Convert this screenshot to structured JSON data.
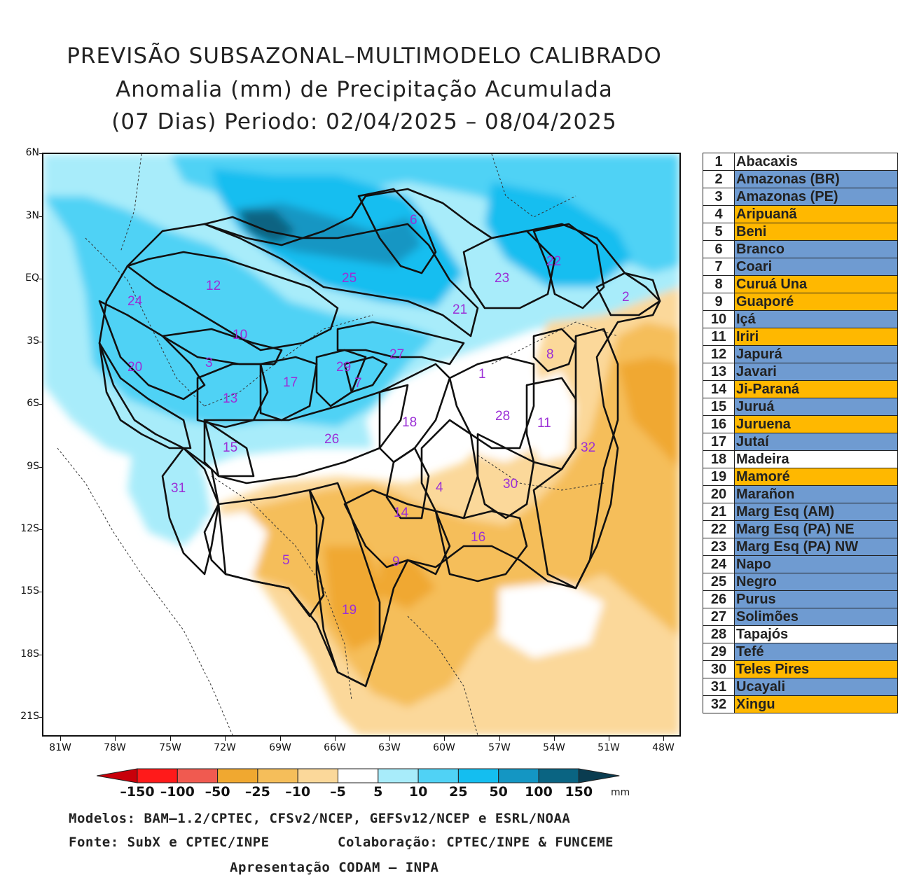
{
  "title": {
    "line1": "PREVISÃO SUBSAZONAL–MULTIMODELO CALIBRADO",
    "line2": "Anomalia (mm) de Precipitação Acumulada",
    "line3": "(07 Dias) Periodo: 02/04/2025 – 08/04/2025"
  },
  "axes": {
    "lat_labels": [
      "6N",
      "3N",
      "EQ",
      "3S",
      "6S",
      "9S",
      "12S",
      "15S",
      "18S",
      "21S"
    ],
    "lon_labels": [
      "81W",
      "78W",
      "75W",
      "72W",
      "69W",
      "66W",
      "63W",
      "60W",
      "57W",
      "54W",
      "51W",
      "48W"
    ]
  },
  "basin_labels": [
    "1",
    "2",
    "3",
    "4",
    "5",
    "6",
    "7",
    "8",
    "9",
    "10",
    "11",
    "12",
    "13",
    "14",
    "15",
    "16",
    "17",
    "18",
    "19",
    "20",
    "21",
    "22",
    "23",
    "24",
    "25",
    "26",
    "27",
    "28",
    "29",
    "30",
    "31",
    "32"
  ],
  "legend": [
    {
      "num": "1",
      "name": "Abacaxis",
      "color": "#ffffff"
    },
    {
      "num": "2",
      "name": "Amazonas (BR)",
      "color": "#6f9bd1"
    },
    {
      "num": "3",
      "name": "Amazonas (PE)",
      "color": "#6f9bd1"
    },
    {
      "num": "4",
      "name": "Aripuanã",
      "color": "#ffb800"
    },
    {
      "num": "5",
      "name": "Beni",
      "color": "#ffb800"
    },
    {
      "num": "6",
      "name": "Branco",
      "color": "#6f9bd1"
    },
    {
      "num": "7",
      "name": "Coari",
      "color": "#6f9bd1"
    },
    {
      "num": "8",
      "name": "Curuá Una",
      "color": "#ffb800"
    },
    {
      "num": "9",
      "name": "Guaporé",
      "color": "#ffb800"
    },
    {
      "num": "10",
      "name": "Içá",
      "color": "#6f9bd1"
    },
    {
      "num": "11",
      "name": "Iriri",
      "color": "#ffb800"
    },
    {
      "num": "12",
      "name": "Japurá",
      "color": "#6f9bd1"
    },
    {
      "num": "13",
      "name": "Javari",
      "color": "#6f9bd1"
    },
    {
      "num": "14",
      "name": "Ji-Paraná",
      "color": "#ffb800"
    },
    {
      "num": "15",
      "name": "Juruá",
      "color": "#6f9bd1"
    },
    {
      "num": "16",
      "name": "Juruena",
      "color": "#ffb800"
    },
    {
      "num": "17",
      "name": "Jutaí",
      "color": "#6f9bd1"
    },
    {
      "num": "18",
      "name": "Madeira",
      "color": "#ffffff"
    },
    {
      "num": "19",
      "name": "Mamoré",
      "color": "#ffb800"
    },
    {
      "num": "20",
      "name": "Marañon",
      "color": "#6f9bd1"
    },
    {
      "num": "21",
      "name": "Marg Esq (AM)",
      "color": "#6f9bd1"
    },
    {
      "num": "22",
      "name": "Marg Esq (PA) NE",
      "color": "#6f9bd1"
    },
    {
      "num": "23",
      "name": "Marg Esq (PA) NW",
      "color": "#6f9bd1"
    },
    {
      "num": "24",
      "name": "Napo",
      "color": "#6f9bd1"
    },
    {
      "num": "25",
      "name": "Negro",
      "color": "#6f9bd1"
    },
    {
      "num": "26",
      "name": "Purus",
      "color": "#6f9bd1"
    },
    {
      "num": "27",
      "name": "Solimões",
      "color": "#6f9bd1"
    },
    {
      "num": "28",
      "name": "Tapajós",
      "color": "#ffffff"
    },
    {
      "num": "29",
      "name": "Tefé",
      "color": "#6f9bd1"
    },
    {
      "num": "30",
      "name": "Teles Pires",
      "color": "#ffb800"
    },
    {
      "num": "31",
      "name": "Ucayali",
      "color": "#6f9bd1"
    },
    {
      "num": "32",
      "name": "Xingu",
      "color": "#ffb800"
    }
  ],
  "colorbar": {
    "ticks": [
      "–150",
      "–100",
      "–50",
      "–25",
      "–10",
      "–5",
      "5",
      "10",
      "25",
      "50",
      "100",
      "150"
    ],
    "unit": "mm",
    "colors": [
      "#c8000a",
      "#ff1a1a",
      "#f05a50",
      "#f0a830",
      "#f5be5a",
      "#fbd89a",
      "#ffffff",
      "#a8ecfa",
      "#50d2f5",
      "#14bef0",
      "#1496c3",
      "#0a6482",
      "#0a3c50"
    ]
  },
  "credits": {
    "models": "Modelos: BAM–1.2/CPTEC, CFSv2/NCEP, GEFSv12/NCEP e ESRL/NOAA",
    "source": "Fonte: SubX e CPTEC/INPE",
    "collab": "Colaboração: CPTEC/INPE & FUNCEME",
    "presentation": "Apresentação CODAM – INPA"
  }
}
